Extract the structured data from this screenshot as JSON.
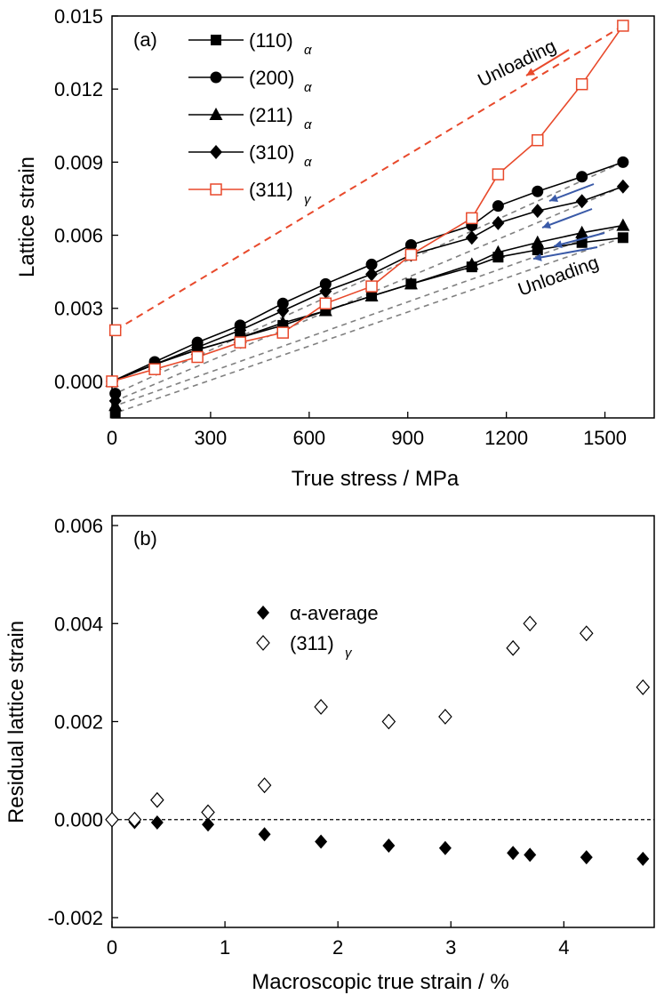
{
  "chart_data": [
    {
      "panel": "(a)",
      "type": "line",
      "xlabel": "True stress / MPa",
      "ylabel": "Lattice strain",
      "xlim": [
        0,
        1650
      ],
      "ylim": [
        -0.0015,
        0.015
      ],
      "xticks": [
        "0",
        "300",
        "600",
        "900",
        "1200",
        "1500"
      ],
      "xtick_values": [
        0,
        300,
        600,
        900,
        1200,
        1500
      ],
      "yticks": [
        "0.000",
        "0.003",
        "0.006",
        "0.009",
        "0.012",
        "0.015"
      ],
      "ytick_values": [
        0,
        0.003,
        0.006,
        0.009,
        0.012,
        0.015
      ],
      "series": [
        {
          "name": "(110)",
          "subscript": "α",
          "marker": "square",
          "color": "#000000",
          "x": [
            0,
            130,
            260,
            390,
            520,
            650,
            790,
            910,
            1095,
            1175,
            1295,
            1430,
            1555
          ],
          "y": [
            0.0,
            0.0007,
            0.0013,
            0.0018,
            0.0023,
            0.0029,
            0.0035,
            0.004,
            0.0047,
            0.0051,
            0.0054,
            0.0057,
            0.0059
          ],
          "unload_end": [
            10,
            -0.0013
          ]
        },
        {
          "name": "(200)",
          "subscript": "α",
          "marker": "circle",
          "color": "#000000",
          "x": [
            0,
            130,
            260,
            390,
            520,
            650,
            790,
            910,
            1095,
            1175,
            1295,
            1430,
            1555
          ],
          "y": [
            0.0,
            0.0008,
            0.0016,
            0.0023,
            0.0032,
            0.004,
            0.0048,
            0.0056,
            0.0064,
            0.0072,
            0.0078,
            0.0084,
            0.009
          ],
          "unload_end": [
            10,
            -0.0005
          ]
        },
        {
          "name": "(211)",
          "subscript": "α",
          "marker": "triangle",
          "color": "#000000",
          "x": [
            0,
            130,
            260,
            390,
            520,
            650,
            790,
            910,
            1095,
            1175,
            1295,
            1430,
            1555
          ],
          "y": [
            0.0,
            0.0007,
            0.0013,
            0.0018,
            0.0024,
            0.0029,
            0.0035,
            0.004,
            0.0048,
            0.0053,
            0.0057,
            0.0061,
            0.0064
          ],
          "unload_end": [
            10,
            -0.001
          ]
        },
        {
          "name": "(310)",
          "subscript": "α",
          "marker": "diamond",
          "color": "#000000",
          "x": [
            0,
            130,
            260,
            390,
            520,
            650,
            790,
            910,
            1095,
            1175,
            1295,
            1430,
            1555
          ],
          "y": [
            0.0,
            0.0007,
            0.0014,
            0.0021,
            0.0029,
            0.0037,
            0.0044,
            0.0052,
            0.0059,
            0.0065,
            0.007,
            0.0074,
            0.008
          ],
          "unload_end": [
            10,
            -0.0008
          ]
        },
        {
          "name": "(311)",
          "subscript": "γ",
          "marker": "open-square",
          "color": "#e8492b",
          "x": [
            0,
            130,
            260,
            390,
            520,
            650,
            790,
            910,
            1095,
            1175,
            1295,
            1430,
            1555
          ],
          "y": [
            0.0,
            0.0005,
            0.001,
            0.0016,
            0.002,
            0.0032,
            0.0039,
            0.0052,
            0.0067,
            0.0085,
            0.0099,
            0.0122,
            0.0146
          ],
          "unload_end": [
            10,
            0.0021
          ]
        }
      ],
      "annotations": [
        "Unloading",
        "Unloading"
      ],
      "colors": {
        "alpha": "#000000",
        "gamma": "#e8492b",
        "unload_dash": "#808080",
        "arrow_blue": "#3a5aa8",
        "arrow_red": "#e8492b"
      }
    },
    {
      "panel": "(b)",
      "type": "scatter",
      "xlabel": "Macroscopic true strain / %",
      "ylabel": "Residual lattice strain",
      "xlim": [
        0,
        4.8
      ],
      "ylim": [
        -0.0022,
        0.0062
      ],
      "xticks": [
        "0",
        "1",
        "2",
        "3",
        "4"
      ],
      "xtick_values": [
        0,
        1,
        2,
        3,
        4
      ],
      "yticks": [
        "-0.002",
        "0.000",
        "0.002",
        "0.004",
        "0.006"
      ],
      "ytick_values": [
        -0.002,
        0,
        0.002,
        0.004,
        0.006
      ],
      "reference_line_y": 0,
      "series": [
        {
          "name": "α-average",
          "marker": "filled-diamond",
          "color": "#000000",
          "x": [
            0.2,
            0.4,
            0.85,
            1.35,
            1.85,
            2.45,
            2.95,
            3.55,
            3.7,
            4.2,
            4.7
          ],
          "y": [
            -5e-05,
            -6e-05,
            -0.0001,
            -0.0003,
            -0.00045,
            -0.00053,
            -0.00058,
            -0.00068,
            -0.00072,
            -0.00077,
            -0.0008
          ]
        },
        {
          "name": "(311)",
          "subscript": "γ",
          "marker": "open-diamond",
          "color": "#000000",
          "x": [
            0,
            0.2,
            0.4,
            0.85,
            1.35,
            1.85,
            2.45,
            2.95,
            3.55,
            3.7,
            4.2,
            4.7
          ],
          "y": [
            0.0,
            0.0,
            0.0004,
            0.00015,
            0.0007,
            0.0023,
            0.002,
            0.0021,
            0.0035,
            0.004,
            0.0038,
            0.0027
          ]
        }
      ]
    }
  ]
}
